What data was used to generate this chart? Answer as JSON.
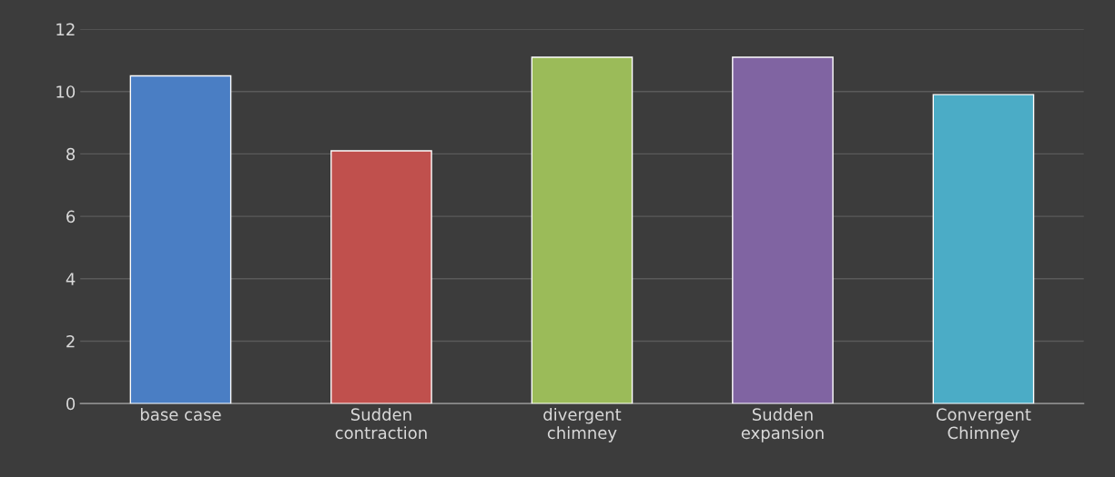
{
  "chart_data": {
    "type": "bar",
    "categories": [
      "base case",
      "Sudden\ncontraction",
      "divergent\nchimney",
      "Sudden\nexpansion",
      "Convergent\nChimney"
    ],
    "values": [
      10.5,
      8.1,
      11.1,
      11.1,
      9.9
    ],
    "colors": [
      "#4a7ec4",
      "#c0504d",
      "#9bbb59",
      "#8064a2",
      "#4bacc6"
    ],
    "ylim": [
      0,
      12
    ],
    "yticks": [
      0,
      2,
      4,
      6,
      8,
      10,
      12
    ],
    "grid": "y"
  }
}
